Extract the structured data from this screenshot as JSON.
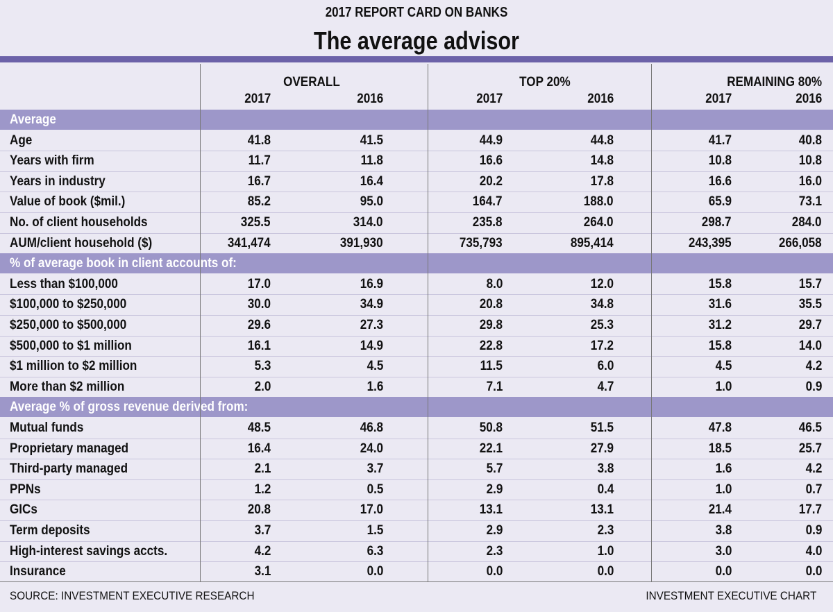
{
  "header": {
    "kicker": "2017 REPORT CARD ON BANKS",
    "title": "The average advisor"
  },
  "table": {
    "groups": [
      {
        "label": "OVERALL",
        "years": [
          "2017",
          "2016"
        ]
      },
      {
        "label": "TOP 20%",
        "years": [
          "2017",
          "2016"
        ]
      },
      {
        "label": "REMAINING 80%",
        "years": [
          "2017",
          "2016"
        ]
      }
    ],
    "sections": [
      {
        "label": "Average",
        "rows": [
          {
            "label": "Age",
            "values": [
              "41.8",
              "41.5",
              "44.9",
              "44.8",
              "41.7",
              "40.8"
            ]
          },
          {
            "label": "Years with firm",
            "values": [
              "11.7",
              "11.8",
              "16.6",
              "14.8",
              "10.8",
              "10.8"
            ]
          },
          {
            "label": "Years in industry",
            "values": [
              "16.7",
              "16.4",
              "20.2",
              "17.8",
              "16.6",
              "16.0"
            ]
          },
          {
            "label": "Value of book ($mil.)",
            "values": [
              "85.2",
              "95.0",
              "164.7",
              "188.0",
              "65.9",
              "73.1"
            ]
          },
          {
            "label": "No. of client households",
            "values": [
              "325.5",
              "314.0",
              "235.8",
              "264.0",
              "298.7",
              "284.0"
            ]
          },
          {
            "label": "AUM/client household ($)",
            "values": [
              "341,474",
              "391,930",
              "735,793",
              "895,414",
              "243,395",
              "266,058"
            ]
          }
        ]
      },
      {
        "label": "% of average book in client accounts of:",
        "rows": [
          {
            "label": "Less than $100,000",
            "values": [
              "17.0",
              "16.9",
              "8.0",
              "12.0",
              "15.8",
              "15.7"
            ]
          },
          {
            "label": "$100,000 to $250,000",
            "values": [
              "30.0",
              "34.9",
              "20.8",
              "34.8",
              "31.6",
              "35.5"
            ]
          },
          {
            "label": "$250,000 to $500,000",
            "values": [
              "29.6",
              "27.3",
              "29.8",
              "25.3",
              "31.2",
              "29.7"
            ]
          },
          {
            "label": "$500,000 to $1 million",
            "values": [
              "16.1",
              "14.9",
              "22.8",
              "17.2",
              "15.8",
              "14.0"
            ]
          },
          {
            "label": "$1 million to $2 million",
            "values": [
              "5.3",
              "4.5",
              "11.5",
              "6.0",
              "4.5",
              "4.2"
            ]
          },
          {
            "label": "More than $2 million",
            "values": [
              "2.0",
              "1.6",
              "7.1",
              "4.7",
              "1.0",
              "0.9"
            ]
          }
        ]
      },
      {
        "label": "Average % of gross revenue derived from:",
        "rows": [
          {
            "label": "Mutual funds",
            "values": [
              "48.5",
              "46.8",
              "50.8",
              "51.5",
              "47.8",
              "46.5"
            ]
          },
          {
            "label": "Proprietary managed",
            "values": [
              "16.4",
              "24.0",
              "22.1",
              "27.9",
              "18.5",
              "25.7"
            ]
          },
          {
            "label": "Third-party managed",
            "values": [
              "2.1",
              "3.7",
              "5.7",
              "3.8",
              "1.6",
              "4.2"
            ]
          },
          {
            "label": "PPNs",
            "values": [
              "1.2",
              "0.5",
              "2.9",
              "0.4",
              "1.0",
              "0.7"
            ]
          },
          {
            "label": "GICs",
            "values": [
              "20.8",
              "17.0",
              "13.1",
              "13.1",
              "21.4",
              "17.7"
            ]
          },
          {
            "label": "Term deposits",
            "values": [
              "3.7",
              "1.5",
              "2.9",
              "2.3",
              "3.8",
              "0.9"
            ]
          },
          {
            "label": "High-interest savings accts.",
            "values": [
              "4.2",
              "6.3",
              "2.3",
              "1.0",
              "3.0",
              "4.0"
            ]
          },
          {
            "label": "Insurance",
            "values": [
              "3.1",
              "0.0",
              "0.0",
              "0.0",
              "0.0",
              "0.0"
            ]
          }
        ]
      }
    ]
  },
  "footer": {
    "source": "SOURCE: INVESTMENT EXECUTIVE RESEARCH",
    "credit": "INVESTMENT EXECUTIVE CHART"
  }
}
